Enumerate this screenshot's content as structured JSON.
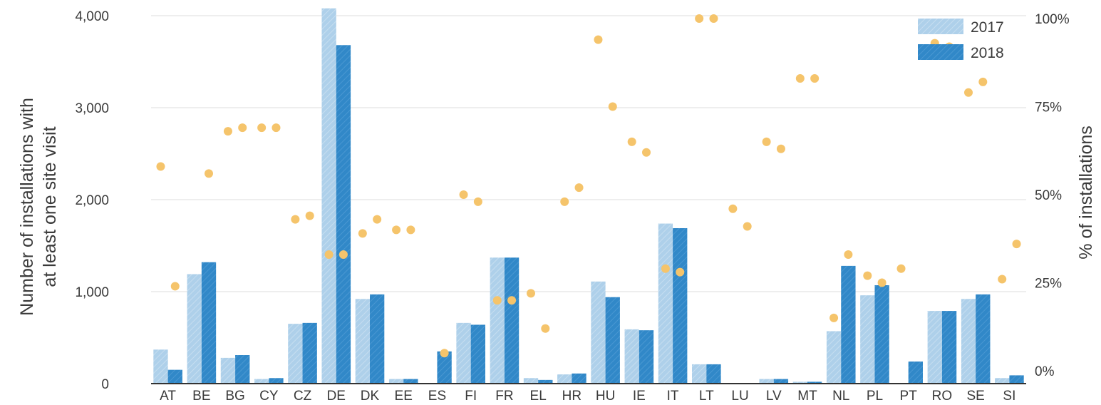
{
  "chart_data": {
    "type": "bar",
    "title": "",
    "ylabel_left": [
      "Number of installations with",
      "at least one site visit"
    ],
    "ylabel_right": "% of installations",
    "ylim_left": [
      0,
      4000
    ],
    "ylim_right": [
      0,
      100
    ],
    "left_ticks": [
      {
        "value": 0,
        "label": "0"
      },
      {
        "value": 1000,
        "label": "1,000"
      },
      {
        "value": 2000,
        "label": "2,000"
      },
      {
        "value": 3000,
        "label": "3,000"
      },
      {
        "value": 4000,
        "label": "4,000"
      }
    ],
    "right_ticks": [
      {
        "value": 0,
        "label": "0%"
      },
      {
        "value": 25,
        "label": "25%"
      },
      {
        "value": 50,
        "label": "50%"
      },
      {
        "value": 75,
        "label": "75%"
      },
      {
        "value": 100,
        "label": "100%"
      }
    ],
    "grid": true,
    "legend_position": "top-right",
    "categories": [
      "AT",
      "BE",
      "BG",
      "CY",
      "CZ",
      "DE",
      "DK",
      "EE",
      "ES",
      "FI",
      "FR",
      "EL",
      "HR",
      "HU",
      "IE",
      "IT",
      "LT",
      "LU",
      "LV",
      "MT",
      "NL",
      "PL",
      "PT",
      "RO",
      "SE",
      "SI"
    ],
    "series": [
      {
        "name": "2017",
        "color": "#aed0ea",
        "values": [
          370,
          1190,
          280,
          50,
          650,
          4080,
          920,
          50,
          0,
          660,
          1370,
          60,
          100,
          1110,
          590,
          1740,
          210,
          0,
          50,
          20,
          570,
          960,
          0,
          790,
          920,
          60
        ]
      },
      {
        "name": "2018",
        "color": "#3188c8",
        "values": [
          150,
          1320,
          310,
          60,
          660,
          3680,
          970,
          50,
          350,
          640,
          1370,
          40,
          110,
          940,
          580,
          1690,
          210,
          0,
          50,
          20,
          1280,
          1070,
          240,
          790,
          970,
          90
        ]
      }
    ],
    "pct_series": {
      "color": "#f5c46b",
      "values_2017": [
        58,
        null,
        68,
        69,
        43,
        33,
        39,
        40,
        null,
        50,
        20,
        22,
        48,
        94,
        65,
        29,
        100,
        46,
        65,
        83,
        15,
        27,
        29,
        93,
        79,
        26
      ],
      "values_2018": [
        24,
        56,
        69,
        69,
        44,
        33,
        43,
        40,
        5,
        48,
        20,
        12,
        52,
        75,
        62,
        28,
        100,
        41,
        63,
        83,
        33,
        25,
        null,
        92,
        82,
        36
      ]
    }
  }
}
